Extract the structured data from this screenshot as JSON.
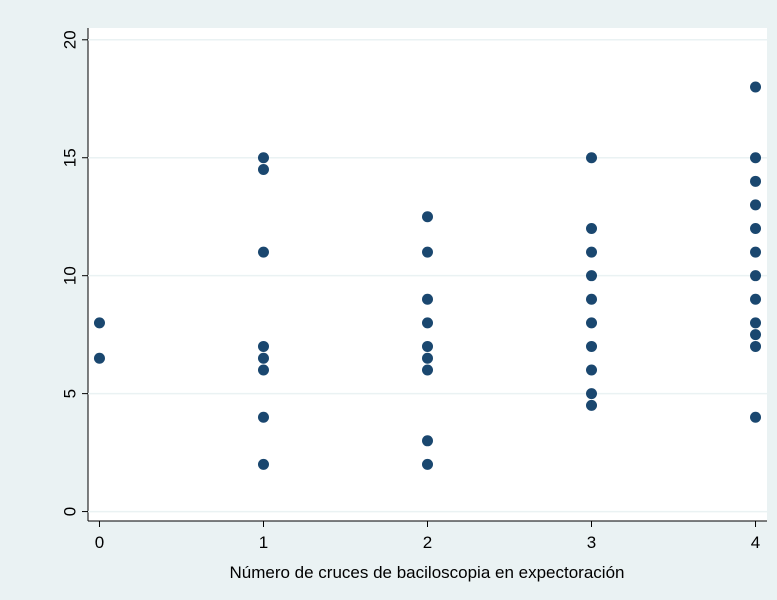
{
  "chart_data": {
    "type": "scatter",
    "x_label": "Número de cruces de baciloscopia en expectoración",
    "x": [
      0,
      0,
      1,
      1,
      1,
      1,
      1,
      1,
      1,
      1,
      2,
      2,
      2,
      2,
      2,
      2,
      2,
      2,
      2,
      3,
      3,
      3,
      3,
      3,
      3,
      3,
      3,
      3,
      3,
      4,
      4,
      4,
      4,
      4,
      4,
      4,
      4,
      4,
      4,
      4,
      4
    ],
    "values": [
      8,
      6.5,
      15,
      14.5,
      11,
      7,
      6.5,
      6,
      4,
      2,
      12.5,
      11,
      9,
      8,
      7,
      6.5,
      6,
      3,
      2,
      15,
      12,
      11,
      10,
      9,
      8,
      7,
      6,
      5,
      4.5,
      18,
      15,
      14,
      13,
      12,
      11,
      10,
      9,
      8,
      7.5,
      7,
      4
    ],
    "color": "#1a476f",
    "xlim": [
      -0.07,
      4.07
    ],
    "xticks": [
      0,
      1,
      2,
      3,
      4
    ],
    "ylim": [
      -0.4,
      20.5
    ],
    "yticks": [
      0,
      5,
      10,
      15,
      20
    ],
    "grid": true
  }
}
